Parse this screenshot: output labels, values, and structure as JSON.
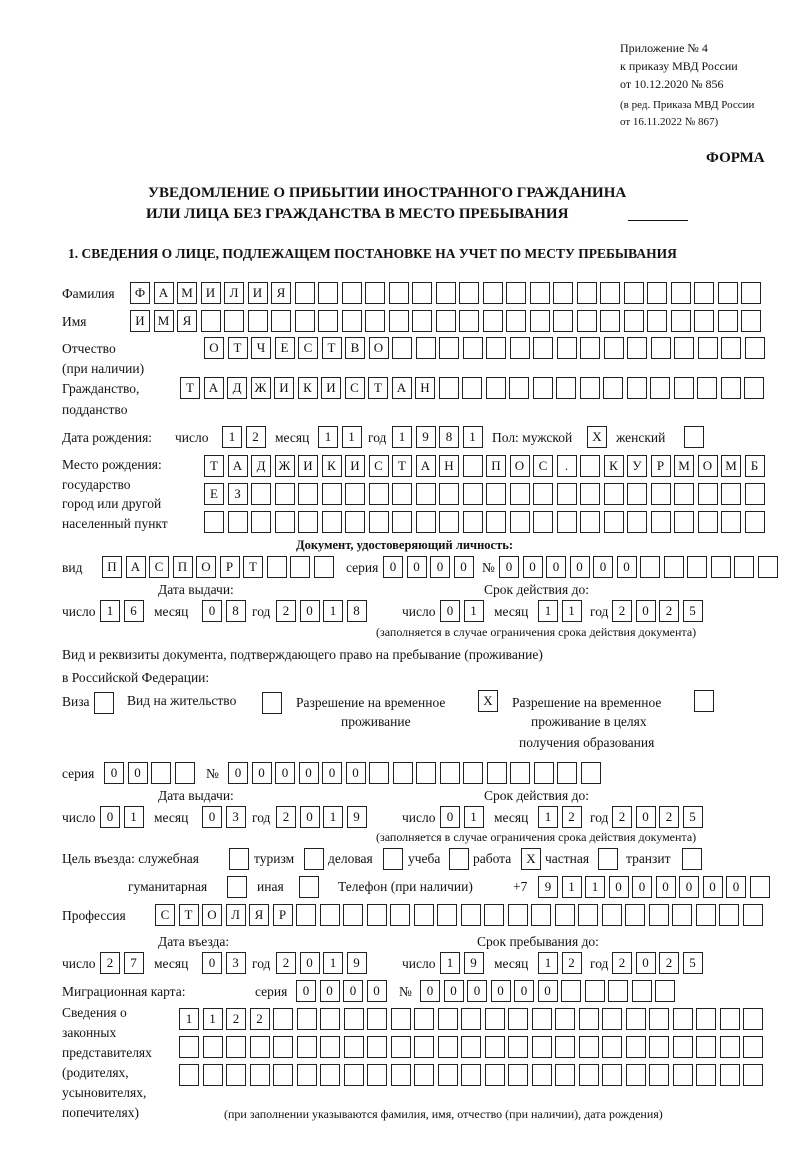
{
  "header": {
    "appendix": "Приложение № 4",
    "order": "к приказу МВД России",
    "order_date": "от 10.12.2020 № 856",
    "edition1": "(в ред. Приказа МВД России",
    "edition2": "от 16.11.2022 № 867)",
    "form_label": "ФОРМА",
    "title1": "УВЕДОМЛЕНИЕ О ПРИБЫТИИ ИНОСТРАННОГО ГРАЖДАНИНА",
    "title2": "ИЛИ ЛИЦА БЕЗ ГРАЖДАНСТВА В МЕСТО ПРЕБЫВАНИЯ"
  },
  "section1": {
    "title": "1. СВЕДЕНИЯ О ЛИЦЕ, ПОДЛЕЖАЩЕМ ПОСТАНОВКЕ НА УЧЕТ ПО МЕСТУ ПРЕБЫВАНИЯ",
    "surname": {
      "label": "Фамилия",
      "value": "ФАМИЛИЯ"
    },
    "name": {
      "label": "Имя",
      "value": "ИМЯ"
    },
    "patronymic": {
      "label1": "Отчество",
      "label2": "(при наличии)",
      "value": "ОТЧЕСТВО"
    },
    "citizenship": {
      "label1": "Гражданство,",
      "label2": "подданство",
      "value": "ТАДЖИКИСТАН"
    },
    "birth": {
      "label": "Дата рождения:",
      "day_label": "число",
      "day": "12",
      "month_label": "месяц",
      "month": "11",
      "year_label": "год",
      "year": "1981",
      "sex_label": "Пол: мужской",
      "male": "X",
      "female_label": "женский",
      "female": ""
    },
    "birthplace": {
      "label1": "Место рождения:",
      "label2": "государство",
      "label3": "город или другой",
      "label4": "населенный пункт",
      "line1": "ТАДЖИКИСТАН ПОС. КУРМОМБ",
      "line2": "ЕЗ",
      "line3": ""
    },
    "id_doc": {
      "heading": "Документ, удостоверяющий личность:",
      "kind_label": "вид",
      "kind": "ПАСПОРТ",
      "series_label": "серия",
      "series": "0000",
      "number_label": "№",
      "number": "000000",
      "issue_label": "Дата выдачи:",
      "expiry_label": "Срок действия до:",
      "issue": {
        "day": "16",
        "month": "08",
        "year": "2018"
      },
      "expiry": {
        "day": "01",
        "month": "11",
        "year": "2025"
      },
      "note": "(заполняется в случае ограничения срока действия документа)"
    },
    "residence_doc": {
      "label1": "Вид и реквизиты документа, подтверждающего право на пребывание (проживание)",
      "label2": "в Российской Федерации:",
      "visa_label": "Виза",
      "visa": "",
      "permit_label": "Вид на жительство",
      "permit": "",
      "temp_label1": "Разрешение на временное",
      "temp_label2": "проживание",
      "temp": "X",
      "edu_label1": "Разрешение на временное",
      "edu_label2": "проживание в целях",
      "edu_label3": "получения образования",
      "edu": "",
      "series_label": "серия",
      "series": "00",
      "number_label": "№",
      "number": "000000",
      "issue_label": "Дата выдачи:",
      "expiry_label": "Срок действия до:",
      "issue": {
        "day": "01",
        "month": "03",
        "year": "2019"
      },
      "expiry": {
        "day": "01",
        "month": "12",
        "year": "2025"
      },
      "note": "(заполняется в случае ограничения срока действия документа)"
    },
    "purpose": {
      "label": "Цель въезда: служебная",
      "service": "",
      "tourism_label": "туризм",
      "tourism": "",
      "business_label": "деловая",
      "business": "",
      "study_label": "учеба",
      "study": "",
      "work_label": "работа",
      "work": "X",
      "private_label": "частная",
      "private": "",
      "transit_label": "транзит",
      "transit": "",
      "humanitarian_label": "гуманитарная",
      "humanitarian": "",
      "other_label": "иная",
      "other": ""
    },
    "phone": {
      "label": "Телефон (при наличии)",
      "prefix": "+7",
      "value": "911000000"
    },
    "profession": {
      "label": "Профессия",
      "value": "СТОЛЯР"
    },
    "entry": {
      "entry_label": "Дата въезда:",
      "stay_label": "Срок пребывания до:",
      "entry_date": {
        "day": "27",
        "month": "03",
        "year": "2019"
      },
      "stay_until": {
        "day": "19",
        "month": "12",
        "year": "2025"
      }
    },
    "migration_card": {
      "label": "Миграционная карта:",
      "series_label": "серия",
      "series": "0000",
      "number_label": "№",
      "number": "000000"
    },
    "representatives": {
      "label1": "Сведения о",
      "label2": "законных",
      "label3": "представителях",
      "label4": "(родителях,",
      "label5": "усыновителях,",
      "label6": "попечителях)",
      "line1": "1122",
      "line2": "",
      "line3": "",
      "note": "(при заполнении указываются фамилия, имя, отчество (при наличии), дата рождения)"
    },
    "labels": {
      "day": "число",
      "month": "месяц",
      "year": "год"
    }
  }
}
